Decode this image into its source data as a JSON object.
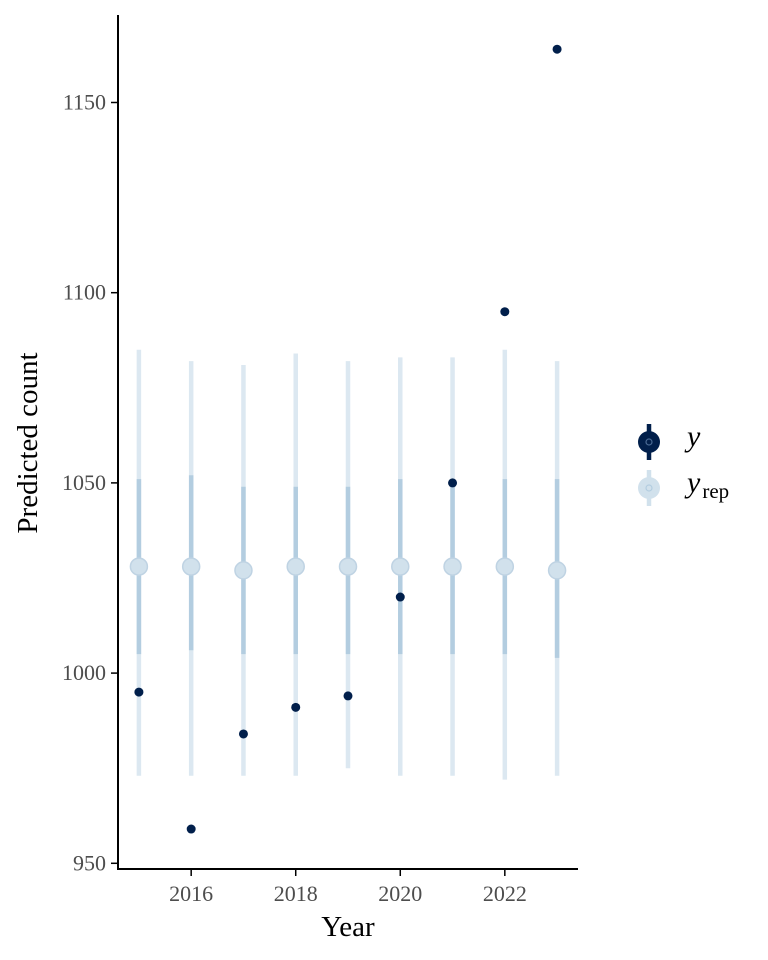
{
  "chart_data": {
    "type": "scatter",
    "xlabel": "Year",
    "ylabel": "Predicted count",
    "xlim": [
      2014.6,
      2023.4
    ],
    "ylim": [
      948.5,
      1173
    ],
    "x_ticks": [
      2016,
      2018,
      2020,
      2022
    ],
    "y_ticks": [
      950,
      1000,
      1050,
      1100,
      1150
    ],
    "grid": false,
    "legend_position": "right",
    "legend": [
      {
        "label": "y",
        "subscript": ""
      },
      {
        "label": "y",
        "subscript": "rep"
      }
    ],
    "colors": {
      "y": "#011f4b",
      "yrep_point": "#d1e1ec",
      "yrep_outer": "#dce8f1",
      "yrep_inner": "#b3cde0",
      "axis": "#000000"
    },
    "series": [
      {
        "name": "y",
        "x": [
          2015,
          2016,
          2017,
          2018,
          2019,
          2020,
          2021,
          2022,
          2023
        ],
        "y": [
          995,
          959,
          984,
          991,
          994,
          1020,
          1050,
          1095,
          1164
        ]
      },
      {
        "name": "y_rep",
        "x": [
          2015,
          2016,
          2017,
          2018,
          2019,
          2020,
          2021,
          2022,
          2023
        ],
        "median": [
          1028,
          1028,
          1027,
          1028,
          1028,
          1028,
          1028,
          1028,
          1027
        ],
        "inner_low": [
          1005,
          1006,
          1005,
          1005,
          1005,
          1005,
          1005,
          1005,
          1004
        ],
        "inner_high": [
          1051,
          1052,
          1049,
          1049,
          1049,
          1051,
          1051,
          1051,
          1051
        ],
        "outer_low": [
          973,
          973,
          973,
          973,
          975,
          973,
          973,
          972,
          973
        ],
        "outer_high": [
          1085,
          1082,
          1081,
          1084,
          1082,
          1083,
          1083,
          1085,
          1082
        ]
      }
    ]
  }
}
